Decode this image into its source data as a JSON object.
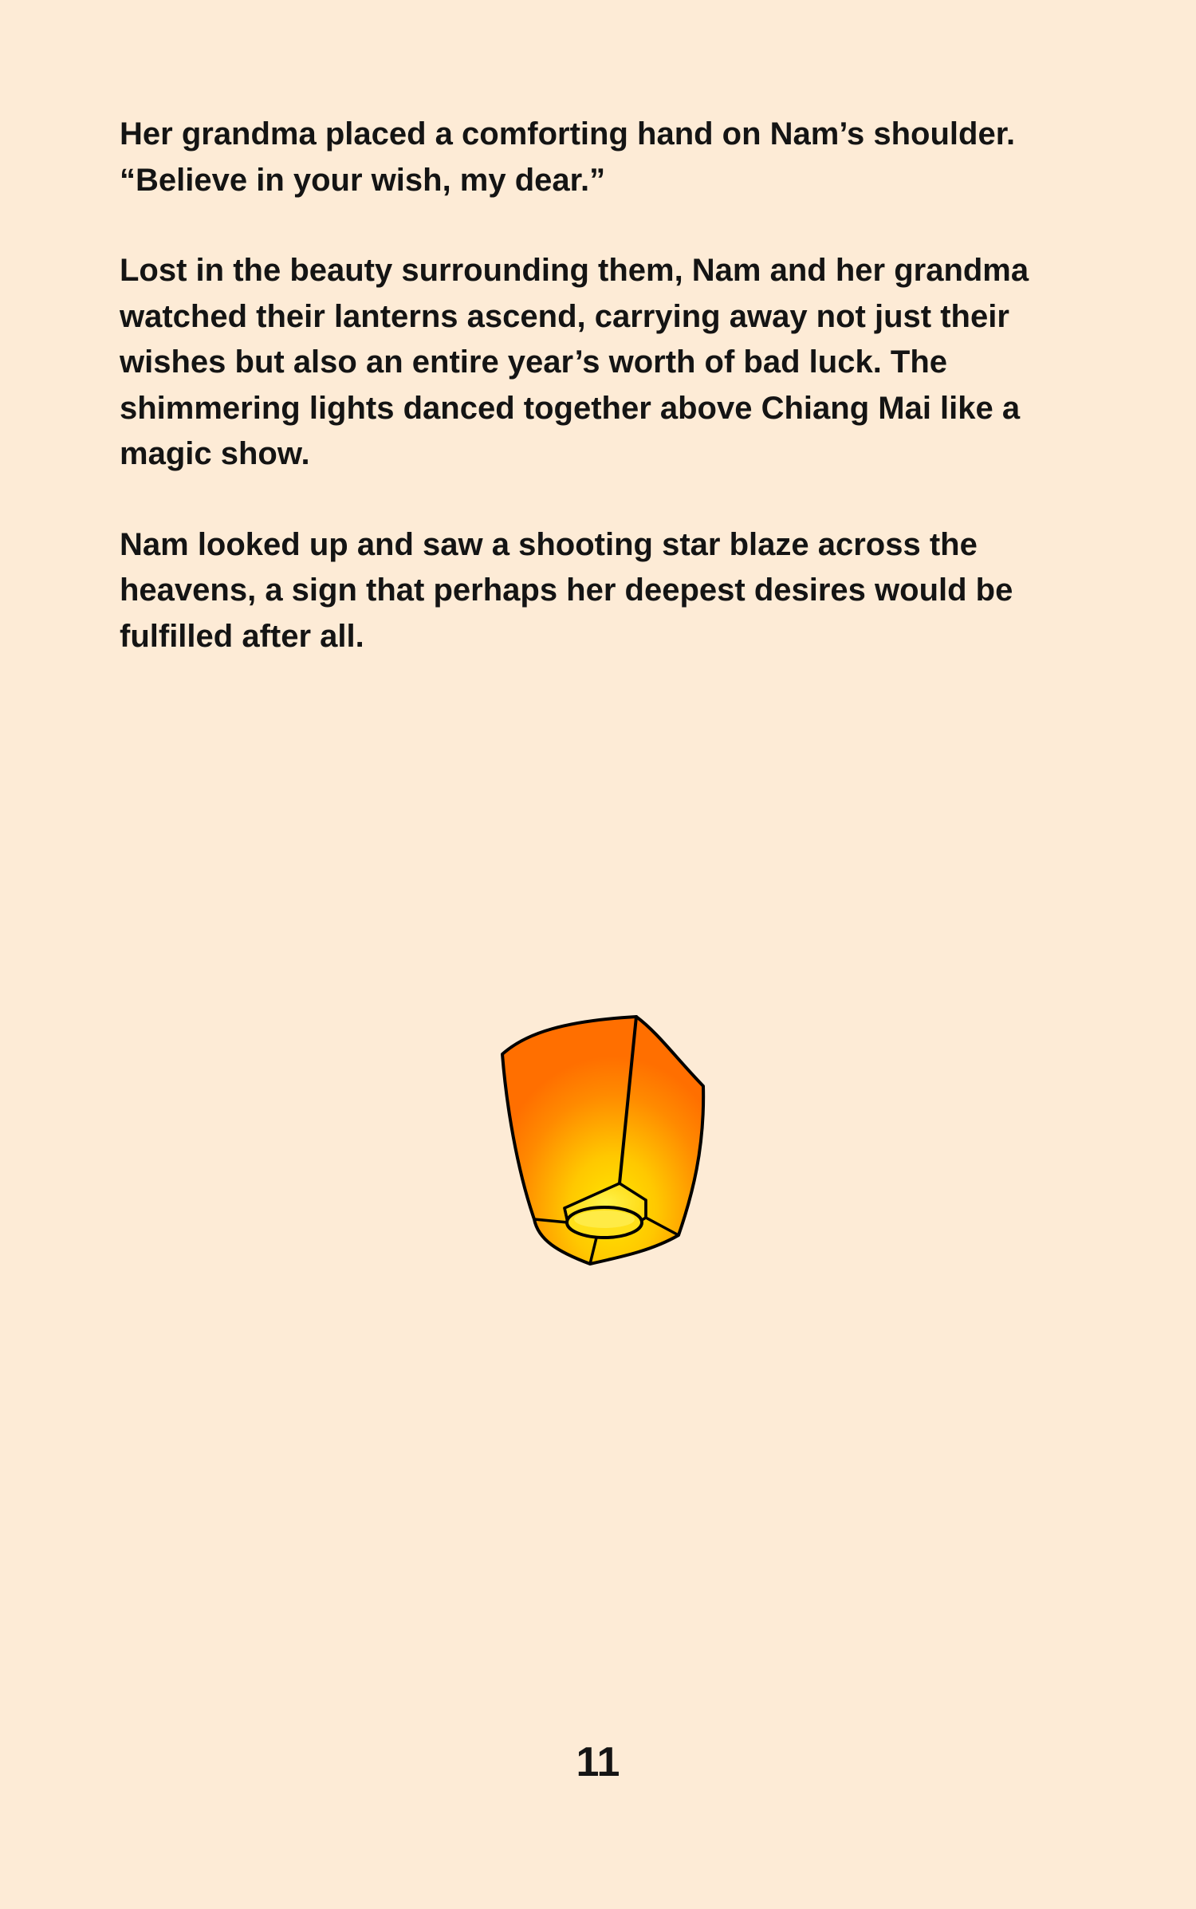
{
  "story": {
    "paragraphs": [
      {
        "lines": [
          "Her grandma placed a comforting hand on Nam’s shoulder.",
          "“Believe in your wish, my dear.”"
        ]
      },
      {
        "lines": [
          "Lost in the beauty surrounding them, Nam and her grandma",
          "watched their lanterns ascend, carrying away not just their",
          "wishes but also an entire year’s worth of bad luck. The",
          "shimmering lights danced together above Chiang Mai like a",
          "magic show."
        ]
      },
      {
        "lines": [
          "Nam looked up and saw a shooting star blaze across the",
          "heavens, a sign that perhaps her deepest desires would be",
          "fulfilled after all."
        ]
      }
    ]
  },
  "illustration": {
    "icon": "sky-lantern-icon",
    "colors": {
      "outer": "#ff7a00",
      "glow": "#ffe200",
      "outline": "#000000"
    }
  },
  "page": {
    "number": "11"
  },
  "colors": {
    "background": "#fdebd6",
    "text": "#141414"
  }
}
